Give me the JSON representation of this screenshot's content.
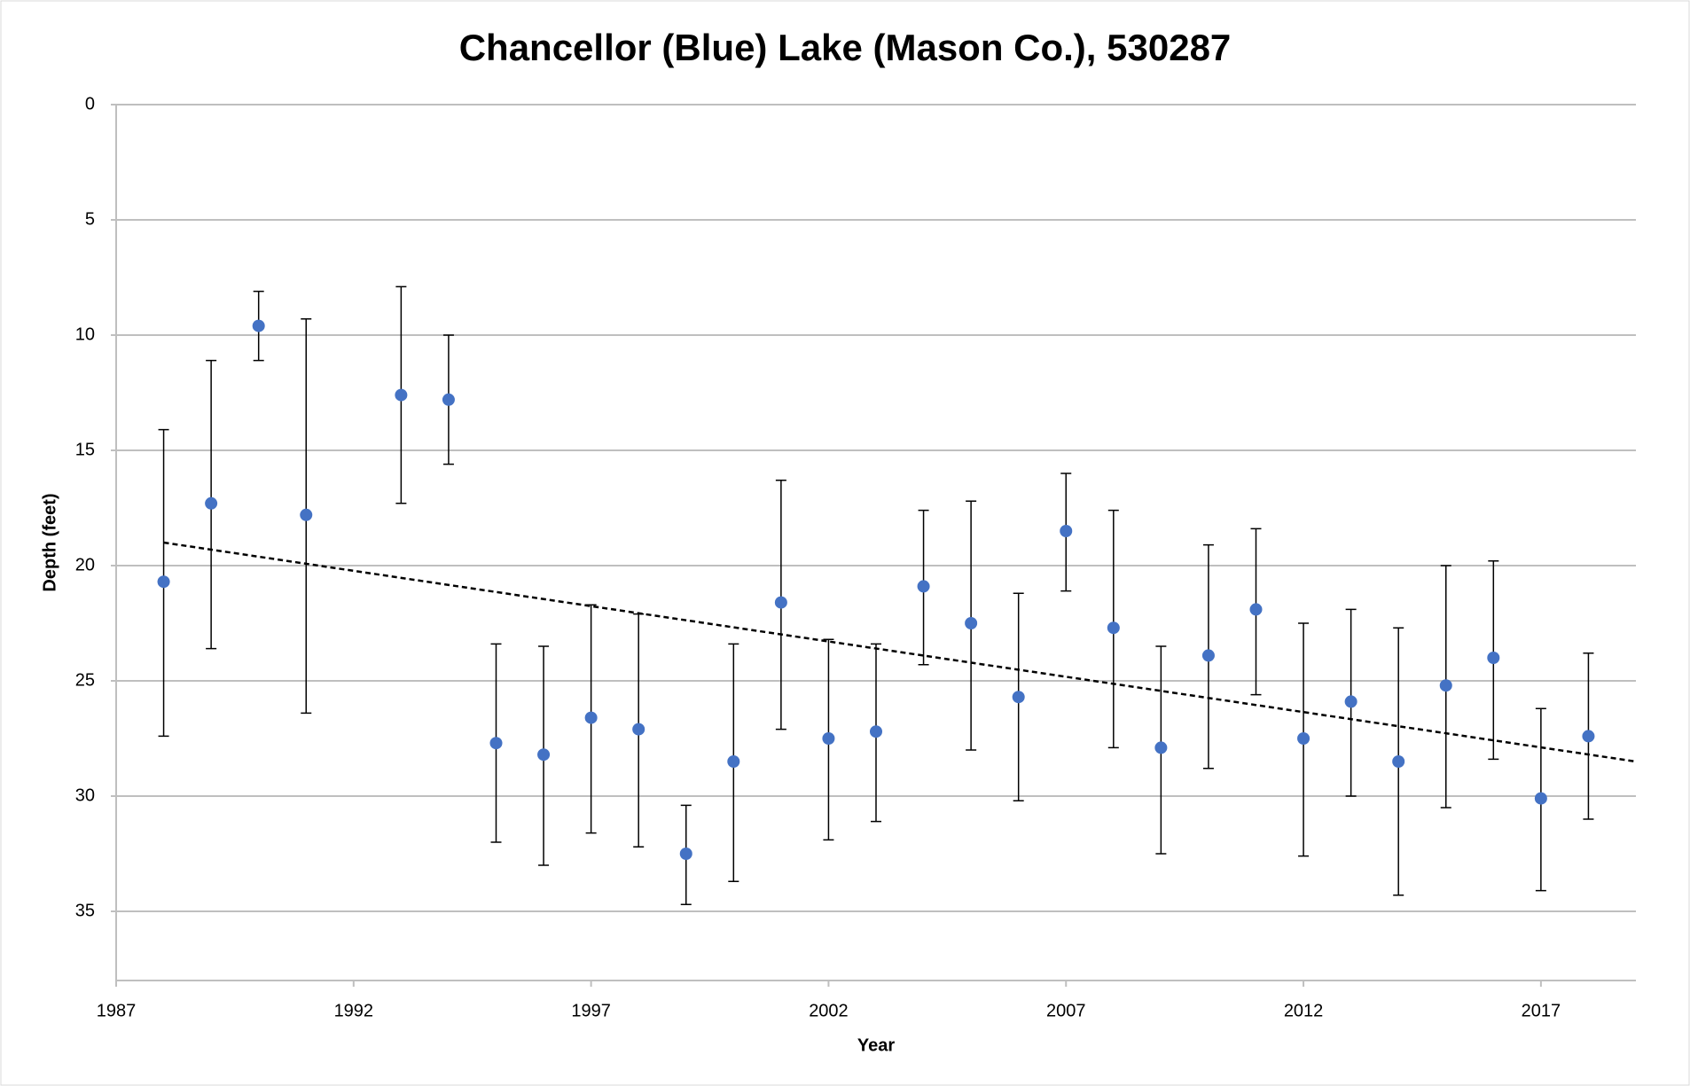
{
  "chart_data": {
    "type": "scatter",
    "title": "Chancellor (Blue) Lake (Mason Co.), 530287",
    "xlabel": "Year",
    "ylabel": "Depth (feet)",
    "x": [
      1988,
      1989,
      1990,
      1991,
      1993,
      1994,
      1995,
      1996,
      1997,
      1998,
      1999,
      2000,
      2001,
      2002,
      2003,
      2004,
      2005,
      2006,
      2007,
      2008,
      2009,
      2010,
      2011,
      2012,
      2013,
      2014,
      2015,
      2016,
      2017,
      2018
    ],
    "values": [
      20.7,
      17.3,
      9.6,
      17.8,
      12.6,
      12.8,
      27.7,
      28.2,
      26.6,
      27.1,
      32.5,
      28.5,
      21.6,
      27.5,
      27.2,
      20.9,
      22.5,
      25.7,
      18.5,
      22.7,
      27.9,
      23.9,
      21.9,
      27.5,
      25.9,
      28.5,
      25.2,
      24.0,
      30.1,
      27.4
    ],
    "error_low": [
      14.1,
      11.1,
      8.1,
      9.3,
      7.9,
      10.0,
      23.4,
      23.5,
      21.7,
      22.1,
      30.4,
      23.4,
      16.3,
      23.2,
      23.4,
      17.6,
      17.2,
      21.2,
      16.0,
      17.6,
      23.5,
      19.1,
      18.4,
      22.5,
      21.9,
      22.7,
      20.0,
      19.8,
      26.2,
      23.8
    ],
    "error_high": [
      27.4,
      23.6,
      11.1,
      26.4,
      17.3,
      15.6,
      32.0,
      33.0,
      31.6,
      32.2,
      34.7,
      33.7,
      27.1,
      31.9,
      31.1,
      24.3,
      28.0,
      30.2,
      21.1,
      27.9,
      32.5,
      28.8,
      25.6,
      32.6,
      30.0,
      34.3,
      30.5,
      28.4,
      34.1,
      31.0
    ],
    "color": "#4472c4",
    "trendline": {
      "x": [
        1988,
        2019
      ],
      "values": [
        19.0,
        28.5
      ],
      "color": "#000000",
      "dashed": true
    },
    "xlim": [
      1987,
      2019
    ],
    "xticks": [
      1987,
      1992,
      1997,
      2002,
      2007,
      2012,
      2017
    ],
    "ylim": [
      0,
      38
    ],
    "yticks": [
      0,
      5,
      10,
      15,
      20,
      25,
      30,
      35
    ],
    "y_inverted": true,
    "grid": true
  }
}
